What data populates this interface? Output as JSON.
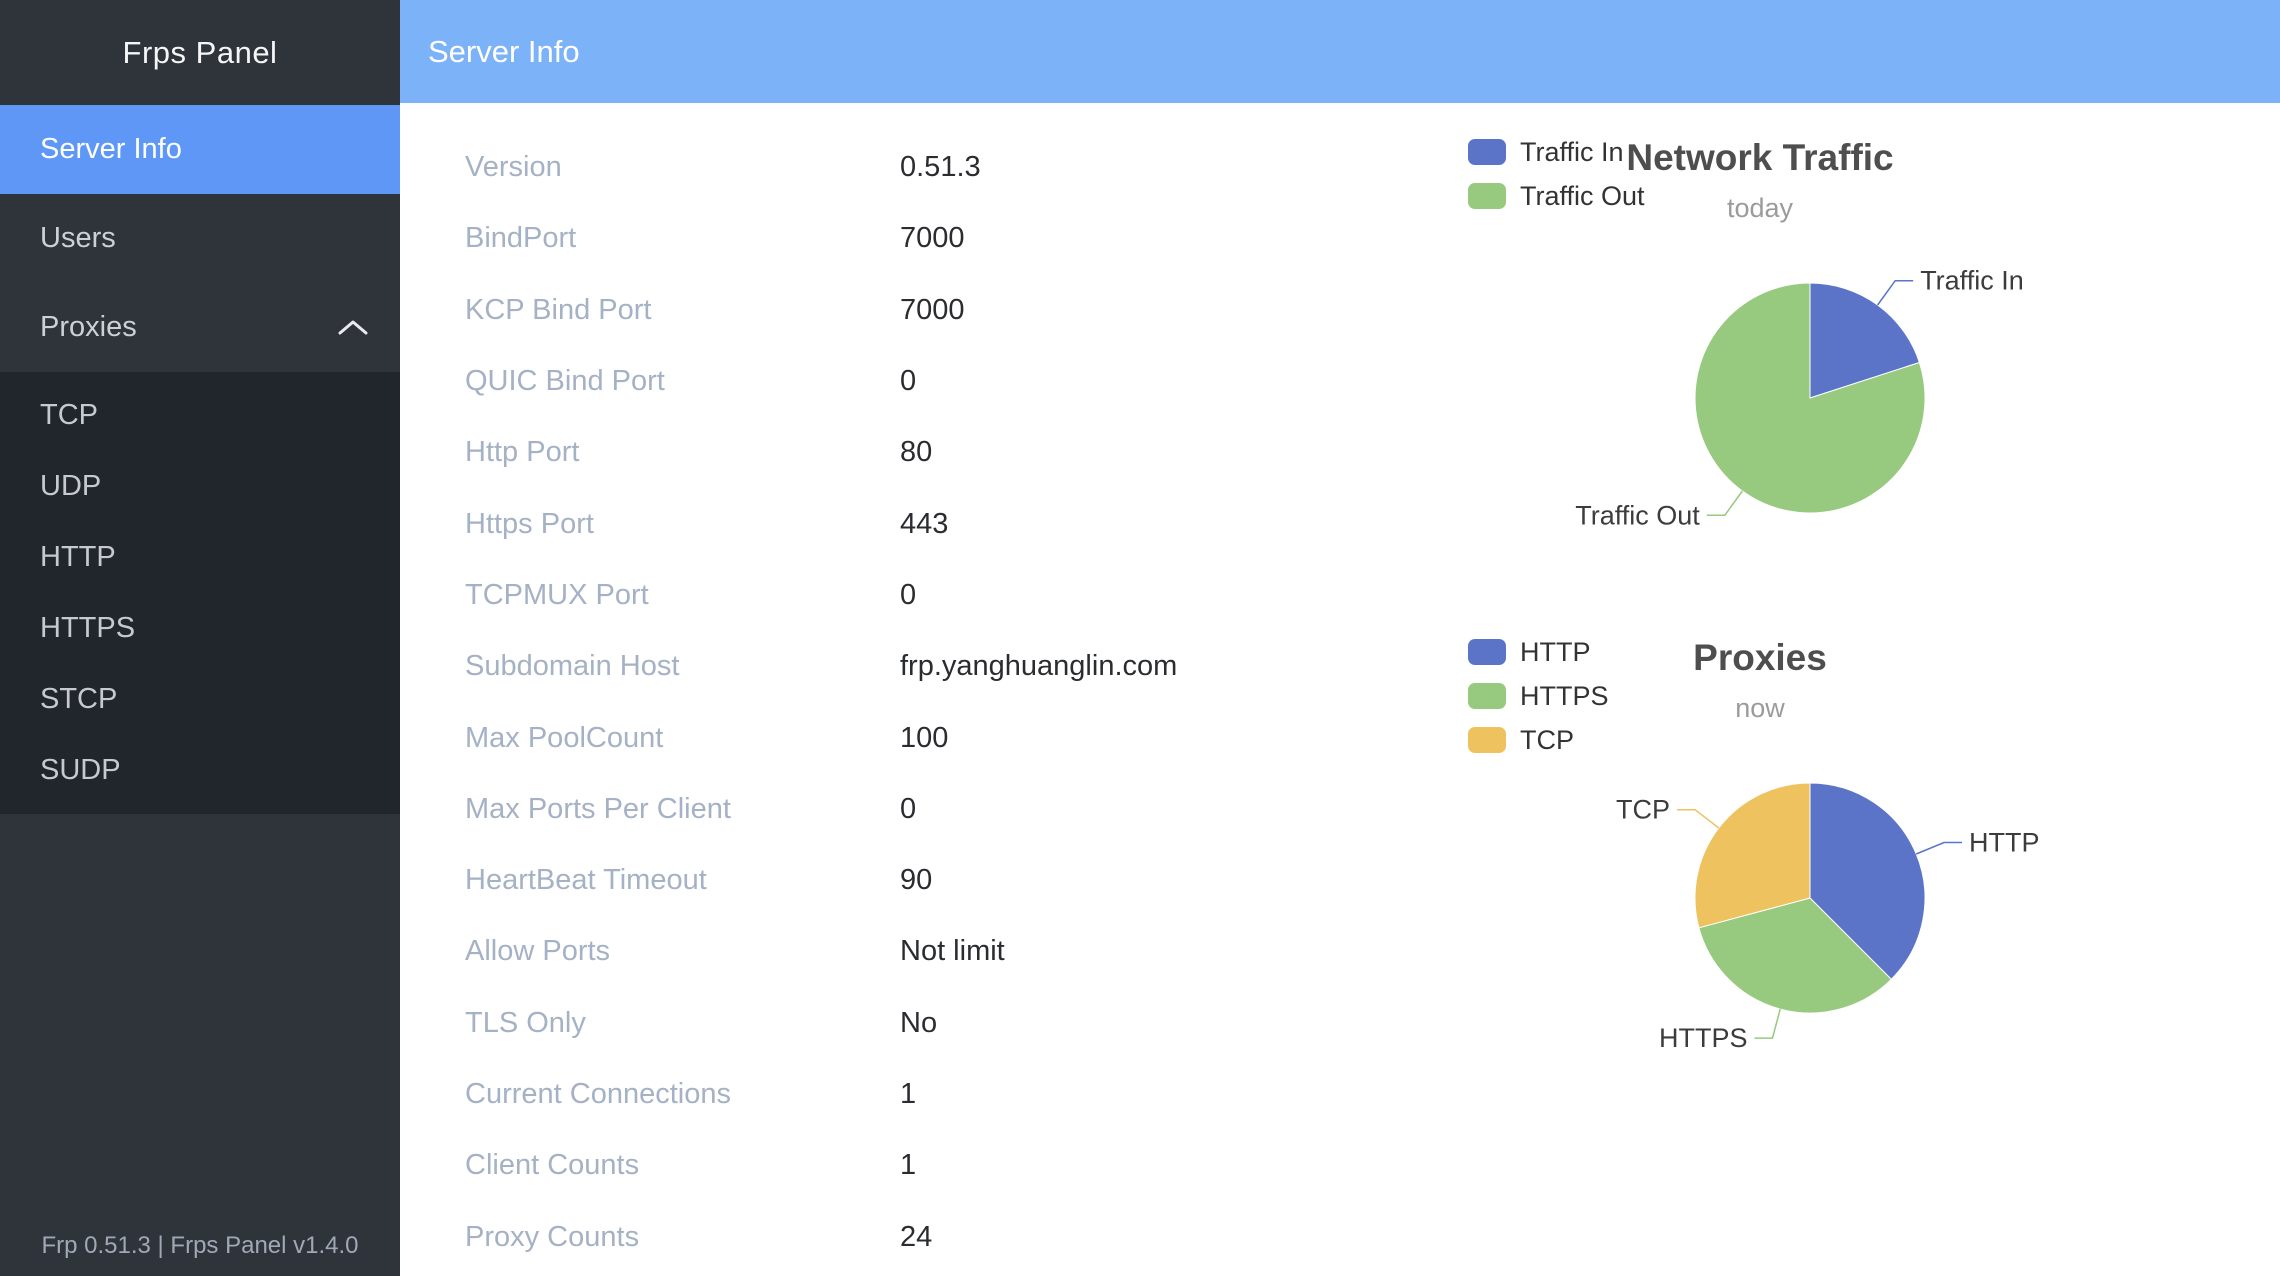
{
  "brand": "Frps Panel",
  "header": {
    "title": "Server Info"
  },
  "sidebar": {
    "items": [
      {
        "label": "Server Info",
        "active": true
      },
      {
        "label": "Users",
        "active": false
      },
      {
        "label": "Proxies",
        "active": false,
        "expanded": true
      }
    ],
    "submenu_items": [
      "TCP",
      "UDP",
      "HTTP",
      "HTTPS",
      "STCP",
      "SUDP"
    ],
    "footer": "Frp 0.51.3 | Frps Panel v1.4.0"
  },
  "server_info": {
    "rows": [
      [
        "Version",
        "0.51.3"
      ],
      [
        "BindPort",
        "7000"
      ],
      [
        "KCP Bind Port",
        "7000"
      ],
      [
        "QUIC Bind Port",
        "0"
      ],
      [
        "Http Port",
        "80"
      ],
      [
        "Https Port",
        "443"
      ],
      [
        "TCPMUX Port",
        "0"
      ],
      [
        "Subdomain Host",
        "frp.yanghuanglin.com"
      ],
      [
        "Max PoolCount",
        "100"
      ],
      [
        "Max Ports Per Client",
        "0"
      ],
      [
        "HeartBeat Timeout",
        "90"
      ],
      [
        "Allow Ports",
        "Not limit"
      ],
      [
        "TLS Only",
        "No"
      ],
      [
        "Current Connections",
        "1"
      ],
      [
        "Client Counts",
        "1"
      ],
      [
        "Proxy Counts",
        "24"
      ]
    ]
  },
  "colors": {
    "header_bg": "#7CB2F7",
    "sidebar_bg": "#2F343B",
    "submenu_bg": "#21262C",
    "active_item_bg": "#5E97F6",
    "pie_blue": "#5B74C8",
    "pie_green": "#97C97E",
    "pie_yellow": "#EEC35F"
  },
  "chart_data": [
    {
      "type": "pie",
      "title": "Network Traffic",
      "subtitle": "today",
      "legend_position": "top-left",
      "categories": [
        "Traffic In",
        "Traffic Out"
      ],
      "values": [
        20,
        80
      ],
      "unit": "percent (estimated from arc angles)",
      "colors": [
        "#5B74C8",
        "#97C97E"
      ]
    },
    {
      "type": "pie",
      "title": "Proxies",
      "subtitle": "now",
      "legend_position": "top-left",
      "categories": [
        "HTTP",
        "HTTPS",
        "TCP"
      ],
      "values": [
        9,
        8,
        7
      ],
      "unit": "proxies (estimated from arc angles; total matches Proxy Counts 24)",
      "colors": [
        "#5B74C8",
        "#97C97E",
        "#EEC35F"
      ]
    }
  ]
}
